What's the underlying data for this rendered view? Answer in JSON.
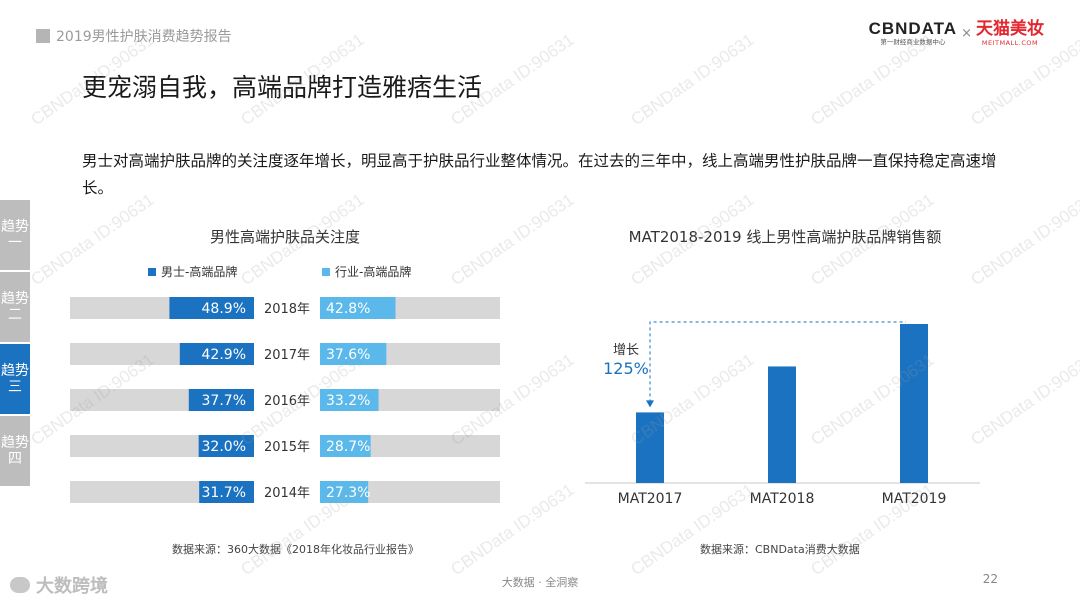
{
  "header": {
    "report_title": "2019男性护肤消费趋势报告"
  },
  "brand": {
    "cbn_logo": "CBNDATA",
    "cbn_sub": "第一财经商业数据中心",
    "separator": "×",
    "tmall_logo": "天猫美妆",
    "tmall_sub": "MEITMALL.COM"
  },
  "page_title": "更宠溺自我，高端品牌打造雅痞生活",
  "intro": "男士对高端护肤品牌的关注度逐年增长，明显高于护肤品行业整体情况。在过去的三年中，线上高端男性护肤品牌一直保持稳定高速增长。",
  "side_tabs": [
    {
      "label": "趋势一",
      "active": false
    },
    {
      "label": "趋势二",
      "active": false
    },
    {
      "label": "趋势三",
      "active": true
    },
    {
      "label": "趋势四",
      "active": false
    }
  ],
  "colors": {
    "men": "#1a72c0",
    "industry": "#5ab9ea",
    "track": "#d7d7d7",
    "accent": "#1a72c0",
    "tab_inactive": "#bdbdbd"
  },
  "chart_data": [
    {
      "type": "bar",
      "orientation": "horizontal-butterfly",
      "title": "男性高端护肤品关注度",
      "categories": [
        "2018年",
        "2017年",
        "2016年",
        "2015年",
        "2014年"
      ],
      "series": [
        {
          "name": "男士-高端品牌",
          "values": [
            48.9,
            42.9,
            37.7,
            32.0,
            31.7
          ],
          "labels": [
            "48.9%",
            "42.9%",
            "37.7%",
            "32.0%",
            "31.7%"
          ]
        },
        {
          "name": "行业-高端品牌",
          "values": [
            42.8,
            37.6,
            33.2,
            28.7,
            27.3
          ],
          "labels": [
            "42.8%",
            "37.6%",
            "33.2%",
            "28.7%",
            "27.3%"
          ]
        }
      ],
      "xlim": [
        0,
        100
      ],
      "source": "数据来源：360大数据《2018年化妆品行业报告》"
    },
    {
      "type": "bar",
      "title": "MAT2018-2019 线上男性高端护肤品牌销售额",
      "categories": [
        "MAT2017",
        "MAT2018",
        "MAT2019"
      ],
      "values": [
        0.444,
        0.733,
        1.0
      ],
      "annotation": {
        "label": "增长",
        "value": "125%",
        "from": "MAT2017",
        "to": "MAT2019"
      },
      "source": "数据来源：CBNData消费大数据"
    }
  ],
  "footer": {
    "text": "大数据 · 全洞察",
    "page_number": "22"
  },
  "watermark": {
    "text": "CBNData ID:90631",
    "corner_text": "大数跨境"
  }
}
